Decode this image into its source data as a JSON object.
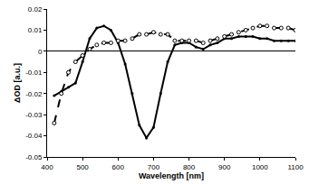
{
  "chart_data": {
    "type": "line",
    "x_label": "Wavelength [nm]",
    "y_label": "ΔOD [a.u.]",
    "x": [
      420,
      440,
      460,
      480,
      500,
      520,
      540,
      560,
      580,
      600,
      620,
      640,
      660,
      680,
      700,
      720,
      740,
      760,
      780,
      800,
      820,
      840,
      860,
      880,
      900,
      920,
      940,
      960,
      980,
      1000,
      1020,
      1040,
      1060,
      1080,
      1100
    ],
    "series": [
      {
        "color": "#000000",
        "line_style": "solid",
        "marker": "filled circle",
        "values": [
          -0.021,
          -0.019,
          -0.017,
          -0.015,
          -0.005,
          0.006,
          0.011,
          0.012,
          0.01,
          0.004,
          -0.006,
          -0.02,
          -0.035,
          -0.041,
          -0.036,
          -0.02,
          -0.005,
          0.003,
          0.004,
          0.004,
          0.002,
          0.001,
          0.003,
          0.004,
          0.006,
          0.006,
          0.007,
          0.007,
          0.007,
          0.006,
          0.006,
          0.005,
          0.005,
          0.005,
          0.005
        ]
      },
      {
        "color": "#000000",
        "line_style": "dashed",
        "marker": "open circle",
        "values": [
          -0.034,
          -0.02,
          -0.01,
          -0.005,
          -0.002,
          0.001,
          0.003,
          0.004,
          0.004,
          0.005,
          0.005,
          0.006,
          0.008,
          0.008,
          0.009,
          0.008,
          0.008,
          0.005,
          0.005,
          0.005,
          0.005,
          0.004,
          0.005,
          0.006,
          0.007,
          0.008,
          0.009,
          0.01,
          0.011,
          0.012,
          0.012,
          0.011,
          0.011,
          0.011,
          0.01
        ]
      }
    ],
    "xlim": [
      400,
      1100
    ],
    "xticks": [
      400,
      500,
      600,
      700,
      800,
      900,
      1000,
      1100
    ],
    "ylim": [
      -0.05,
      0.02
    ],
    "yticks": [
      -0.05,
      -0.04,
      -0.03,
      -0.02,
      -0.01,
      0,
      0.01,
      0.02
    ],
    "grid": false
  }
}
